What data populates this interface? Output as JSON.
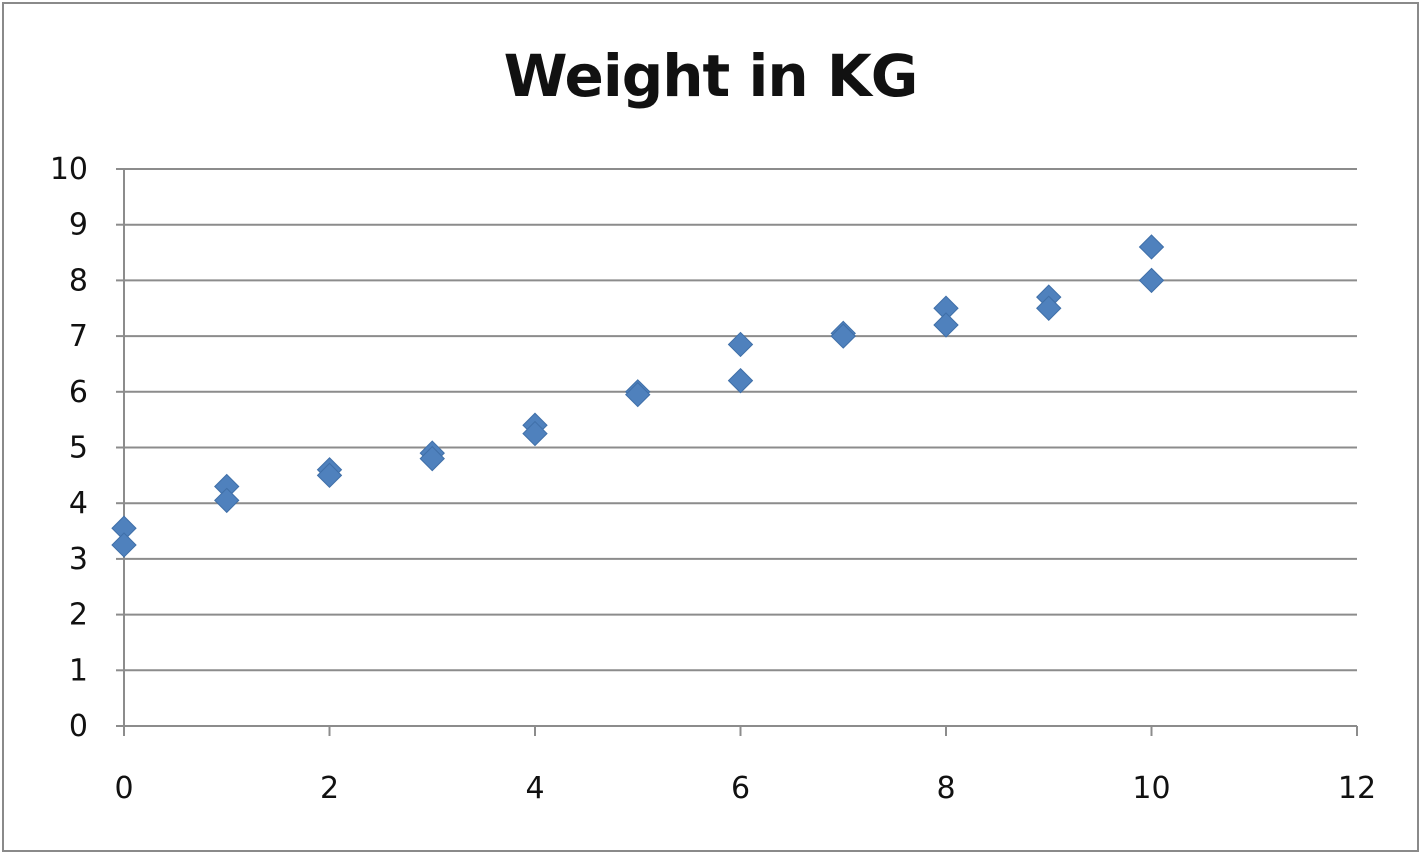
{
  "chart_data": {
    "type": "scatter",
    "title": "Weight in KG",
    "xlabel": "",
    "ylabel": "",
    "xlim": [
      0,
      12
    ],
    "ylim": [
      0,
      10
    ],
    "xticks": [
      "0",
      "2",
      "4",
      "6",
      "8",
      "10",
      "12"
    ],
    "yticks": [
      "0",
      "1",
      "2",
      "3",
      "4",
      "5",
      "6",
      "7",
      "8",
      "9",
      "10"
    ],
    "grid": "horizontal",
    "legend": "none",
    "marker": "diamond",
    "marker_color": "#4f81bd",
    "series": [
      {
        "points": [
          [
            0,
            3.55
          ],
          [
            0,
            3.25
          ],
          [
            1,
            4.3
          ],
          [
            1,
            4.05
          ],
          [
            2,
            4.6
          ],
          [
            2,
            4.5
          ],
          [
            3,
            4.9
          ],
          [
            3,
            4.8
          ],
          [
            4,
            5.4
          ],
          [
            4,
            5.25
          ],
          [
            5,
            6.0
          ],
          [
            5,
            5.95
          ],
          [
            6,
            6.85
          ],
          [
            6,
            6.2
          ],
          [
            7,
            7.05
          ],
          [
            7,
            7.0
          ],
          [
            8,
            7.5
          ],
          [
            8,
            7.2
          ],
          [
            9,
            7.7
          ],
          [
            9,
            7.5
          ],
          [
            10,
            8.6
          ],
          [
            10,
            8.0
          ]
        ]
      }
    ]
  }
}
